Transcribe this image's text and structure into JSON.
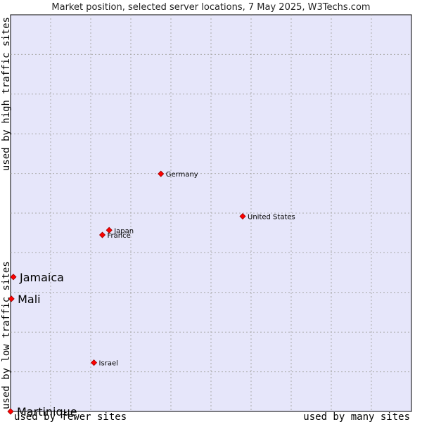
{
  "chart_data": {
    "type": "scatter",
    "title": "Market position, selected server locations, 7 May 2025, W3Techs.com",
    "xlabel_left": "used by fewer sites",
    "xlabel_right": "used by many sites",
    "ylabel_bottom": "used by low traffic sites",
    "ylabel_top": "used by high traffic sites",
    "xlim": [
      0,
      100
    ],
    "ylim": [
      0,
      100
    ],
    "grid": true,
    "point_color": "#ff0000",
    "plot_background": "#e6e6fa",
    "points": [
      {
        "label": "Germany",
        "x": 37.5,
        "y": 59.9,
        "emphasis": "normal"
      },
      {
        "label": "United States",
        "x": 57.9,
        "y": 49.2,
        "emphasis": "normal"
      },
      {
        "label": "Japan",
        "x": 24.6,
        "y": 45.7,
        "emphasis": "normal"
      },
      {
        "label": "France",
        "x": 22.9,
        "y": 44.5,
        "emphasis": "normal"
      },
      {
        "label": "Jamaica",
        "x": 0.7,
        "y": 33.9,
        "emphasis": "highlight"
      },
      {
        "label": "Mali",
        "x": 0.2,
        "y": 28.4,
        "emphasis": "highlight"
      },
      {
        "label": "Israel",
        "x": 20.8,
        "y": 12.3,
        "emphasis": "normal"
      },
      {
        "label": "Martinique",
        "x": 0.0,
        "y": 0.0,
        "emphasis": "highlight"
      }
    ]
  }
}
